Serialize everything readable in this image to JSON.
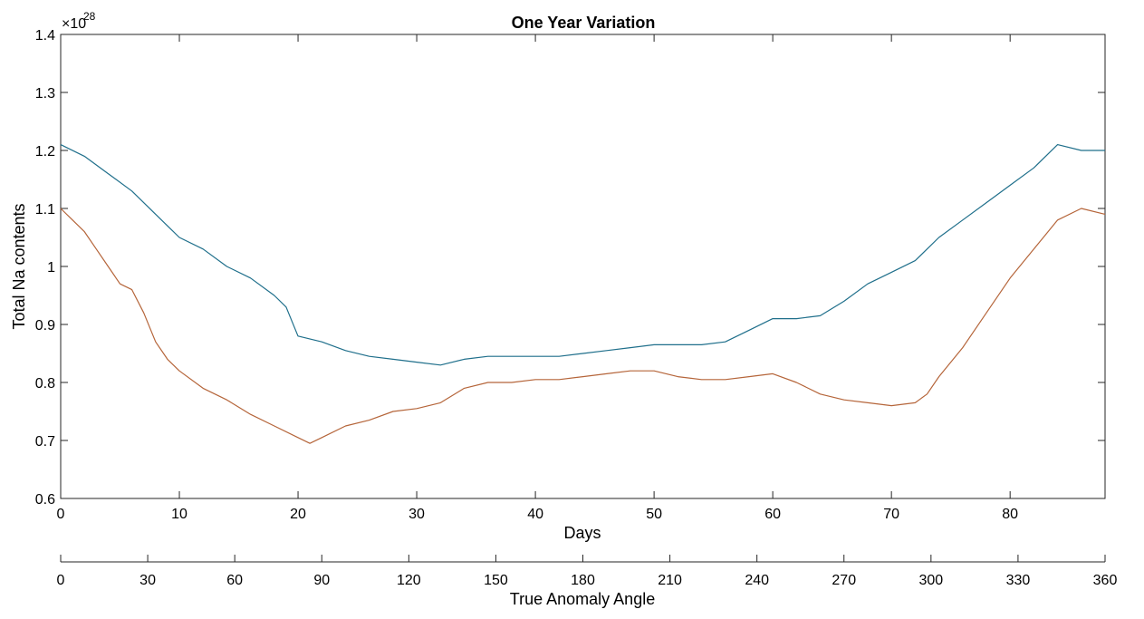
{
  "chart_data": {
    "type": "line",
    "title": "One Year Variation",
    "xlabel": "Days",
    "ylabel": "Total Na contents",
    "y_exponent_base": "×10",
    "y_exponent_power": "28",
    "xlim": [
      0,
      88
    ],
    "ylim": [
      0.6,
      1.4
    ],
    "x_ticks": [
      0,
      10,
      20,
      30,
      40,
      50,
      60,
      70,
      80
    ],
    "y_ticks": [
      0.6,
      0.7,
      0.8,
      0.9,
      1.0,
      1.1,
      1.2,
      1.3,
      1.4
    ],
    "y_tick_labels": [
      "0.6",
      "0.7",
      "0.8",
      "0.9",
      "1",
      "1.1",
      "1.2",
      "1.3",
      "1.4"
    ],
    "secondary_x_axis": {
      "label": "True Anomaly Angle",
      "lim": [
        0,
        360
      ],
      "ticks": [
        0,
        30,
        60,
        90,
        120,
        150,
        180,
        210,
        240,
        270,
        300,
        330,
        360
      ]
    },
    "grid": false,
    "series": [
      {
        "color": "#1f6f8b",
        "x": [
          0,
          2,
          4,
          6,
          8,
          10,
          12,
          14,
          16,
          18,
          19,
          20,
          22,
          24,
          26,
          28,
          30,
          32,
          34,
          36,
          38,
          40,
          42,
          44,
          46,
          48,
          50,
          52,
          54,
          56,
          58,
          60,
          62,
          64,
          66,
          68,
          70,
          72,
          74,
          76,
          78,
          80,
          82,
          84,
          86,
          88
        ],
        "y": [
          1.21,
          1.19,
          1.16,
          1.13,
          1.09,
          1.05,
          1.03,
          1.0,
          0.98,
          0.95,
          0.93,
          0.88,
          0.87,
          0.855,
          0.845,
          0.84,
          0.835,
          0.83,
          0.84,
          0.845,
          0.845,
          0.845,
          0.845,
          0.85,
          0.855,
          0.86,
          0.865,
          0.865,
          0.865,
          0.87,
          0.89,
          0.91,
          0.91,
          0.915,
          0.94,
          0.97,
          0.99,
          1.01,
          1.05,
          1.08,
          1.11,
          1.14,
          1.17,
          1.21,
          1.2,
          1.2
        ]
      },
      {
        "color": "#b5653a",
        "x": [
          0,
          1,
          2,
          3,
          4,
          5,
          6,
          7,
          8,
          9,
          10,
          12,
          14,
          16,
          18,
          20,
          21,
          22,
          24,
          26,
          28,
          30,
          32,
          34,
          36,
          38,
          40,
          42,
          44,
          46,
          48,
          50,
          52,
          54,
          56,
          58,
          60,
          62,
          64,
          66,
          68,
          70,
          72,
          73,
          74,
          76,
          78,
          80,
          82,
          84,
          86,
          88
        ],
        "y": [
          1.1,
          1.08,
          1.06,
          1.03,
          1.0,
          0.97,
          0.96,
          0.92,
          0.87,
          0.84,
          0.82,
          0.79,
          0.77,
          0.745,
          0.725,
          0.705,
          0.695,
          0.705,
          0.725,
          0.735,
          0.75,
          0.755,
          0.765,
          0.79,
          0.8,
          0.8,
          0.805,
          0.805,
          0.81,
          0.815,
          0.82,
          0.82,
          0.81,
          0.805,
          0.805,
          0.81,
          0.815,
          0.8,
          0.78,
          0.77,
          0.765,
          0.76,
          0.765,
          0.78,
          0.81,
          0.86,
          0.92,
          0.98,
          1.03,
          1.08,
          1.1,
          1.09
        ]
      }
    ]
  }
}
